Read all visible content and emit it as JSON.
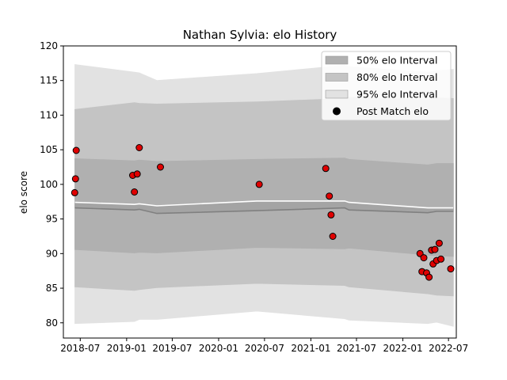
{
  "chart_data": {
    "type": "area",
    "title": "Nathan Sylvia: elo History",
    "xlabel": "",
    "ylabel": "elo score",
    "ylim": [
      77.8,
      120
    ],
    "xlim": [
      "2018-04-25",
      "2022-08-01"
    ],
    "x_ticks": [
      "2018-07",
      "2019-01",
      "2019-07",
      "2020-01",
      "2020-07",
      "2021-01",
      "2021-07",
      "2022-01",
      "2022-07"
    ],
    "y_ticks": [
      80,
      85,
      90,
      95,
      100,
      105,
      110,
      115,
      120
    ],
    "grid": false,
    "legend_position": "top-right",
    "legend": [
      {
        "label": "50% elo Interval",
        "color": "#b0b0b0"
      },
      {
        "label": "80% elo Interval",
        "color": "#c4c4c4"
      },
      {
        "label": "95% elo Interval",
        "color": "#e2e2e2"
      },
      {
        "label": "Post Match elo",
        "color": "#000000"
      }
    ],
    "interval_x": [
      "2018-06-10",
      "2019-02-01",
      "2019-02-20",
      "2019-05-01",
      "2020-06-01",
      "2021-05-15",
      "2021-06-01",
      "2022-04-10",
      "2022-05-15",
      "2022-07-20"
    ],
    "median_upper": [
      97.4,
      97.1,
      97.2,
      96.9,
      97.6,
      97.6,
      97.4,
      96.6,
      96.6,
      96.6
    ],
    "median_lower": [
      96.6,
      96.3,
      96.4,
      95.8,
      96.2,
      96.6,
      96.3,
      95.9,
      96.1,
      96.1
    ],
    "interval_50": {
      "upper": [
        103.7,
        103.4,
        103.5,
        103.3,
        103.6,
        103.8,
        103.6,
        102.8,
        103.0,
        103.0
      ],
      "lower": [
        90.6,
        90.1,
        90.2,
        90.1,
        90.9,
        90.7,
        90.8,
        89.8,
        89.7,
        89.6
      ]
    },
    "interval_80": {
      "upper": [
        110.8,
        111.8,
        111.7,
        111.6,
        111.9,
        112.4,
        112.6,
        112.2,
        112.5,
        112.4
      ],
      "lower": [
        85.2,
        84.7,
        84.8,
        85.1,
        85.7,
        85.4,
        85.2,
        84.2,
        84.0,
        83.9
      ]
    },
    "interval_95": {
      "upper": [
        117.3,
        116.2,
        116.1,
        115.0,
        116.0,
        117.2,
        117.0,
        116.2,
        116.4,
        116.6
      ],
      "lower": [
        79.9,
        80.2,
        80.5,
        80.5,
        81.7,
        80.6,
        80.4,
        79.9,
        80.1,
        79.5
      ]
    },
    "post_match": {
      "name": "Post Match elo",
      "color": "#e00000",
      "points": [
        {
          "x": "2018-06-09",
          "y": 98.8
        },
        {
          "x": "2018-06-12",
          "y": 100.8
        },
        {
          "x": "2018-06-15",
          "y": 104.9
        },
        {
          "x": "2019-01-25",
          "y": 101.3
        },
        {
          "x": "2019-02-01",
          "y": 98.9
        },
        {
          "x": "2019-02-12",
          "y": 101.5
        },
        {
          "x": "2019-02-20",
          "y": 105.3
        },
        {
          "x": "2019-05-15",
          "y": 102.5
        },
        {
          "x": "2020-06-10",
          "y": 100.0
        },
        {
          "x": "2021-03-01",
          "y": 102.3
        },
        {
          "x": "2021-03-15",
          "y": 98.3
        },
        {
          "x": "2021-03-22",
          "y": 95.6
        },
        {
          "x": "2021-03-29",
          "y": 92.5
        },
        {
          "x": "2022-03-10",
          "y": 90.0
        },
        {
          "x": "2022-03-18",
          "y": 87.4
        },
        {
          "x": "2022-03-25",
          "y": 89.4
        },
        {
          "x": "2022-04-05",
          "y": 87.2
        },
        {
          "x": "2022-04-15",
          "y": 86.6
        },
        {
          "x": "2022-04-25",
          "y": 90.5
        },
        {
          "x": "2022-05-01",
          "y": 88.5
        },
        {
          "x": "2022-05-08",
          "y": 90.6
        },
        {
          "x": "2022-05-15",
          "y": 89.0
        },
        {
          "x": "2022-05-25",
          "y": 91.5
        },
        {
          "x": "2022-06-01",
          "y": 89.2
        },
        {
          "x": "2022-07-10",
          "y": 87.8
        }
      ]
    }
  }
}
